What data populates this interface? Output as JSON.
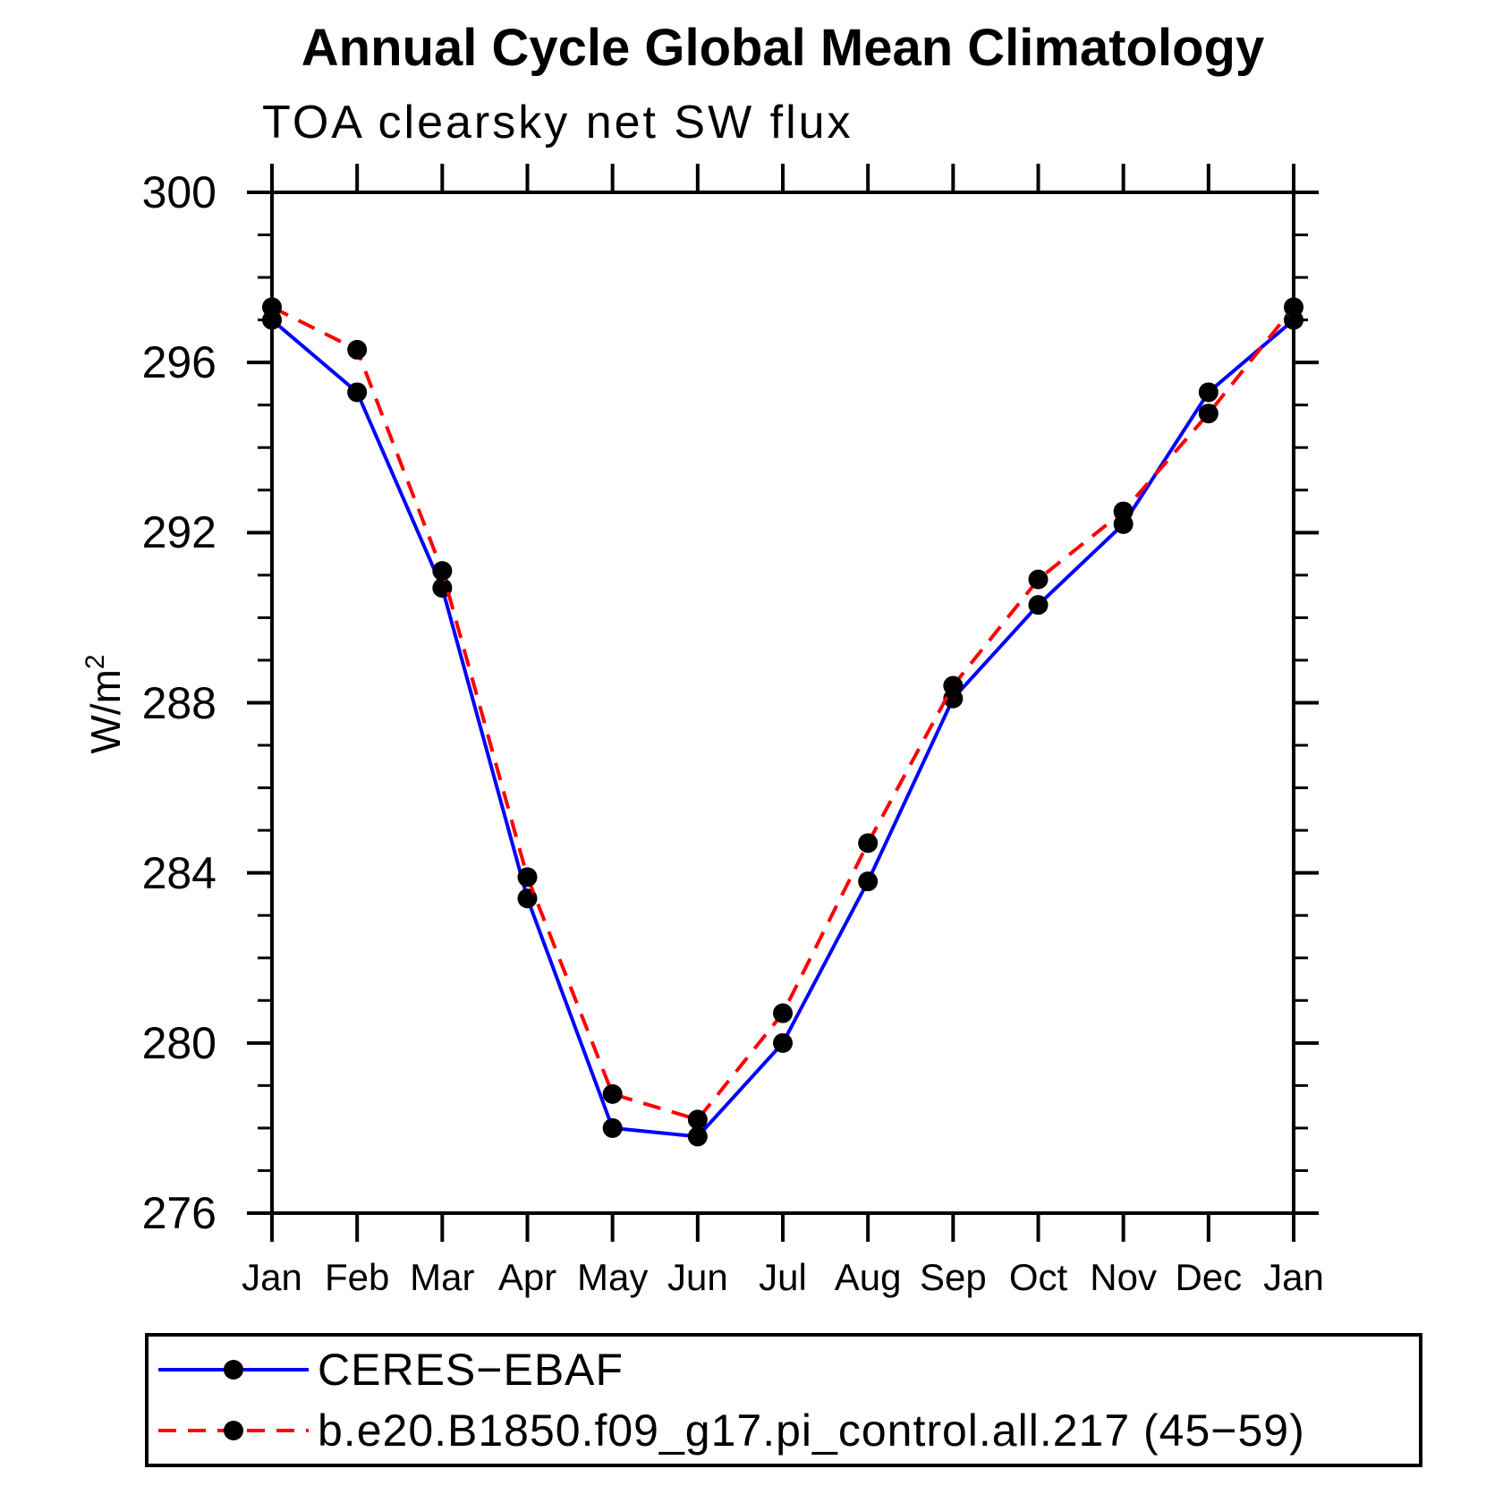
{
  "title": "Annual Cycle Global Mean Climatology",
  "subtitle": "TOA clearsky net SW flux",
  "chart_data": {
    "type": "line",
    "x_categories": [
      "Jan",
      "Feb",
      "Mar",
      "Apr",
      "May",
      "Jun",
      "Jul",
      "Aug",
      "Sep",
      "Oct",
      "Nov",
      "Dec",
      "Jan"
    ],
    "ylabel_base": "W/m",
    "ylabel_exp": "2",
    "ylim": [
      276,
      300
    ],
    "yticks_major": [
      276,
      280,
      284,
      288,
      292,
      296,
      300
    ],
    "ytick_minor_step": 1,
    "grid": false,
    "background": "#ffffff",
    "axis_color": "#000000",
    "marker_color": "#000000",
    "marker_shape": "filled-circle",
    "legend_position": "bottom-left-box",
    "series": [
      {
        "name": "CERES−EBAF",
        "color": "#0000ff",
        "line_style": "solid",
        "values": [
          297.0,
          295.3,
          290.7,
          283.4,
          278.0,
          277.8,
          280.0,
          283.8,
          288.1,
          290.3,
          292.2,
          295.3,
          297.0
        ]
      },
      {
        "name": "b.e20.B1850.f09_g17.pi_control.all.217 (45−59)",
        "color": "#ff0000",
        "line_style": "dashed",
        "values": [
          297.3,
          296.3,
          291.1,
          283.9,
          278.8,
          278.2,
          280.7,
          284.7,
          288.4,
          290.9,
          292.5,
          294.8,
          297.3
        ]
      }
    ]
  }
}
